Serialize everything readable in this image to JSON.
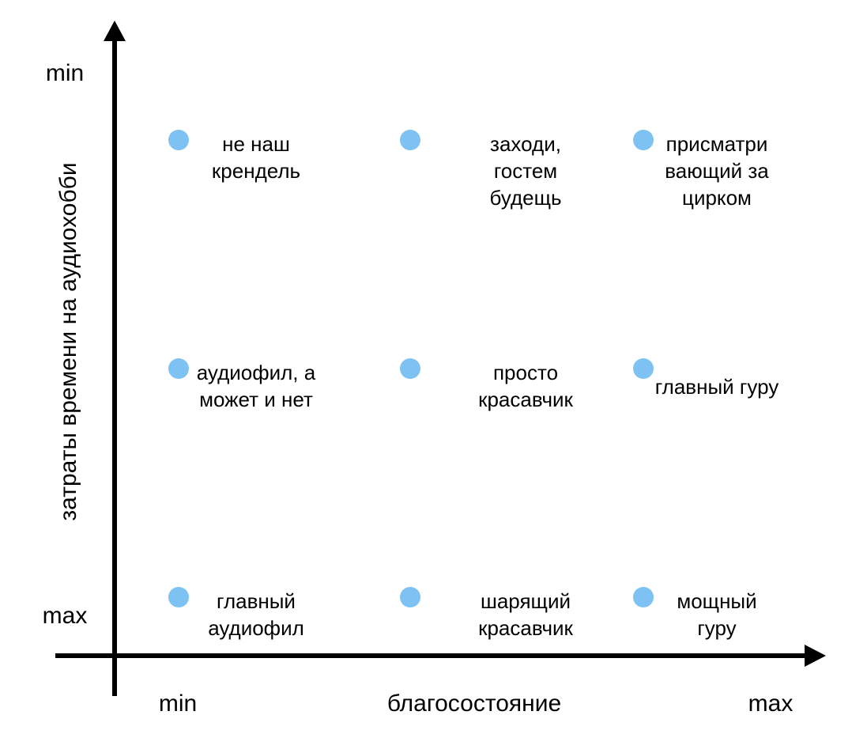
{
  "chart_data": {
    "type": "scatter",
    "title": "",
    "xlabel": "благосостояние",
    "ylabel": "затраты времени на аудиохобби",
    "x_ticks": [
      "min",
      "max"
    ],
    "y_ticks": [
      "min",
      "max"
    ],
    "point_color": "#7dc2f2",
    "axis_color": "#000000",
    "points": [
      {
        "x": 0,
        "y": 2,
        "label": [
          "не наш",
          "крендель"
        ]
      },
      {
        "x": 1,
        "y": 2,
        "label": [
          "заходи,",
          "гостем",
          "будещь"
        ]
      },
      {
        "x": 2,
        "y": 2,
        "label": [
          "присматри",
          "вающий за",
          "цирком"
        ]
      },
      {
        "x": 0,
        "y": 1,
        "label": [
          "аудиофил, а",
          "может и нет"
        ]
      },
      {
        "x": 1,
        "y": 1,
        "label": [
          "просто",
          "красавчик"
        ]
      },
      {
        "x": 2,
        "y": 1,
        "label": [
          "главный гуру"
        ]
      },
      {
        "x": 0,
        "y": 0,
        "label": [
          "главный",
          "аудиофил"
        ]
      },
      {
        "x": 1,
        "y": 0,
        "label": [
          "шарящий",
          "красавчик"
        ]
      },
      {
        "x": 2,
        "y": 0,
        "label": [
          "мощный",
          "гуру"
        ]
      }
    ]
  }
}
